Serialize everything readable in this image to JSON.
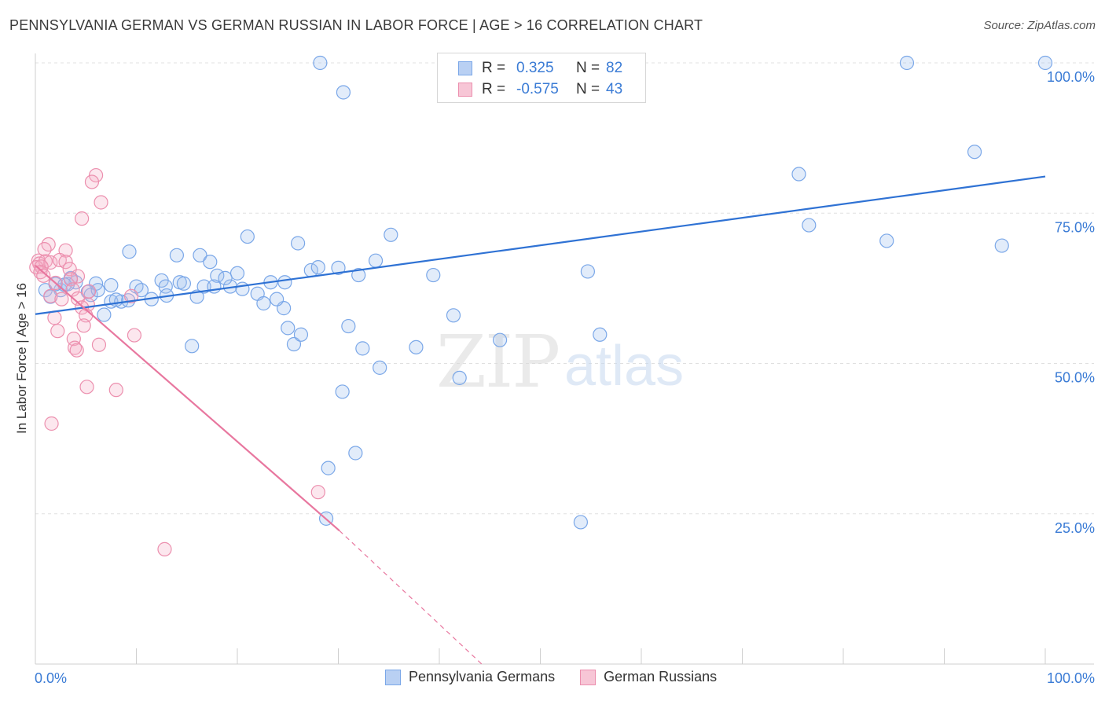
{
  "title": "PENNSYLVANIA GERMAN VS GERMAN RUSSIAN IN LABOR FORCE | AGE > 16 CORRELATION CHART",
  "source": "Source: ZipAtlas.com",
  "watermark": {
    "zip": "ZIP",
    "atlas": "atlas"
  },
  "legend": {
    "r_label": "R =",
    "n_label": "N =",
    "rows": [
      {
        "name": "Pennsylvania Germans",
        "r": "0.325",
        "n": "82",
        "color": "#7aa7e8",
        "fill": "#b9d0f3"
      },
      {
        "name": "German Russians",
        "r": "-0.575",
        "n": "43",
        "color": "#ec8fae",
        "fill": "#f7c6d6"
      }
    ]
  },
  "chart_data": {
    "type": "scatter",
    "title": "PENNSYLVANIA GERMAN VS GERMAN RUSSIAN IN LABOR FORCE | AGE > 16 CORRELATION CHART",
    "xlabel": "",
    "ylabel": "In Labor Force | Age > 16",
    "xlim": [
      0,
      100
    ],
    "ylim": [
      0,
      100
    ],
    "x_tick_labels": [
      "0.0%",
      "100.0%"
    ],
    "y_tick_labels": [
      "25.0%",
      "50.0%",
      "75.0%",
      "100.0%"
    ],
    "y_ticks": [
      25,
      50,
      75,
      100
    ],
    "grid": true,
    "series": [
      {
        "name": "Pennsylvania Germans",
        "color": "#5b8fdc",
        "trend": {
          "x": [
            0,
            100
          ],
          "y": [
            58.2,
            81.1
          ],
          "color": "#2f72d4"
        },
        "points": [
          [
            28.2,
            100
          ],
          [
            30.5,
            95.1
          ],
          [
            43.5,
            100
          ],
          [
            46.7,
            100
          ],
          [
            86.3,
            100
          ],
          [
            100,
            100
          ],
          [
            93,
            85.2
          ],
          [
            75.6,
            81.5
          ],
          [
            76.6,
            73
          ],
          [
            84.3,
            70.4
          ],
          [
            95.7,
            69.6
          ],
          [
            21,
            71.1
          ],
          [
            35.2,
            71.4
          ],
          [
            26,
            70
          ],
          [
            9.3,
            68.6
          ],
          [
            14,
            68
          ],
          [
            16.3,
            68
          ],
          [
            17.3,
            66.9
          ],
          [
            33.7,
            67.1
          ],
          [
            27.3,
            65.5
          ],
          [
            30,
            65.9
          ],
          [
            32,
            64.7
          ],
          [
            39.4,
            64.7
          ],
          [
            54.7,
            65.3
          ],
          [
            18,
            64.6
          ],
          [
            20,
            65
          ],
          [
            3.5,
            64.2
          ],
          [
            4,
            63.5
          ],
          [
            6,
            63.3
          ],
          [
            7.5,
            63
          ],
          [
            12.5,
            63.8
          ],
          [
            14.3,
            63.5
          ],
          [
            14.7,
            63.3
          ],
          [
            16.7,
            62.8
          ],
          [
            17.7,
            62.8
          ],
          [
            19.3,
            62.8
          ],
          [
            23.3,
            63.5
          ],
          [
            24.7,
            63.5
          ],
          [
            10,
            62.8
          ],
          [
            10.5,
            62.2
          ],
          [
            12.9,
            62.8
          ],
          [
            20.5,
            62.4
          ],
          [
            1,
            62.2
          ],
          [
            2.5,
            62.2
          ],
          [
            5.2,
            61.9
          ],
          [
            5.5,
            61.4
          ],
          [
            22,
            61.6
          ],
          [
            1.5,
            61.1
          ],
          [
            7.5,
            60.3
          ],
          [
            8.5,
            60.3
          ],
          [
            11.5,
            60.7
          ],
          [
            13,
            61.3
          ],
          [
            16,
            61.1
          ],
          [
            6.8,
            58.1
          ],
          [
            22.6,
            60
          ],
          [
            24.6,
            59.2
          ],
          [
            41.4,
            58
          ],
          [
            25,
            55.9
          ],
          [
            31,
            56.2
          ],
          [
            25.6,
            53.2
          ],
          [
            26.3,
            54.8
          ],
          [
            55.9,
            54.8
          ],
          [
            46,
            53.9
          ],
          [
            15.5,
            52.9
          ],
          [
            32.4,
            52.5
          ],
          [
            37.7,
            52.7
          ],
          [
            34.1,
            49.3
          ],
          [
            42,
            47.6
          ],
          [
            30.4,
            45.3
          ],
          [
            31.7,
            35.1
          ],
          [
            29,
            32.6
          ],
          [
            28.8,
            24.2
          ],
          [
            54,
            23.6
          ],
          [
            2,
            63.2
          ],
          [
            3.2,
            63.2
          ],
          [
            8,
            60.6
          ],
          [
            9.2,
            60.5
          ],
          [
            6.2,
            62.2
          ],
          [
            18.8,
            64.2
          ],
          [
            28,
            66
          ],
          [
            23.9,
            60.7
          ],
          [
            2.9,
            63.1
          ]
        ]
      },
      {
        "name": "German Russians",
        "color": "#e8779f",
        "trend": {
          "x": [
            0,
            30.1
          ],
          "y": [
            66.3,
            22.2
          ],
          "color": "#e8779f",
          "dash_to": [
            44.2,
            0
          ]
        },
        "points": [
          [
            6,
            81.3
          ],
          [
            5.6,
            80.2
          ],
          [
            6.5,
            76.8
          ],
          [
            4.6,
            74.1
          ],
          [
            1.3,
            69.8
          ],
          [
            0.9,
            69
          ],
          [
            3,
            68.8
          ],
          [
            0.3,
            67.1
          ],
          [
            0.4,
            66.6
          ],
          [
            1,
            67
          ],
          [
            1.5,
            66.8
          ],
          [
            2.4,
            67.2
          ],
          [
            3,
            66.9
          ],
          [
            0.1,
            66
          ],
          [
            0.6,
            66.1
          ],
          [
            3.4,
            65.7
          ],
          [
            0.5,
            65.2
          ],
          [
            0.8,
            64.6
          ],
          [
            4.2,
            64.5
          ],
          [
            3.5,
            64
          ],
          [
            2,
            63.4
          ],
          [
            3.7,
            62.3
          ],
          [
            5.3,
            62
          ],
          [
            1.5,
            61.2
          ],
          [
            2.6,
            60.7
          ],
          [
            4.2,
            60.8
          ],
          [
            5.2,
            59.8
          ],
          [
            4.6,
            59.3
          ],
          [
            5,
            58
          ],
          [
            1.9,
            57.6
          ],
          [
            4.8,
            56.3
          ],
          [
            2.2,
            55.4
          ],
          [
            9.8,
            54.7
          ],
          [
            3.8,
            54.1
          ],
          [
            3.9,
            52.6
          ],
          [
            6.3,
            53.1
          ],
          [
            4.1,
            52.2
          ],
          [
            5.1,
            46.1
          ],
          [
            8,
            45.6
          ],
          [
            1.6,
            40
          ],
          [
            28,
            28.6
          ],
          [
            12.8,
            19.1
          ],
          [
            9.5,
            61.2
          ]
        ]
      }
    ]
  }
}
